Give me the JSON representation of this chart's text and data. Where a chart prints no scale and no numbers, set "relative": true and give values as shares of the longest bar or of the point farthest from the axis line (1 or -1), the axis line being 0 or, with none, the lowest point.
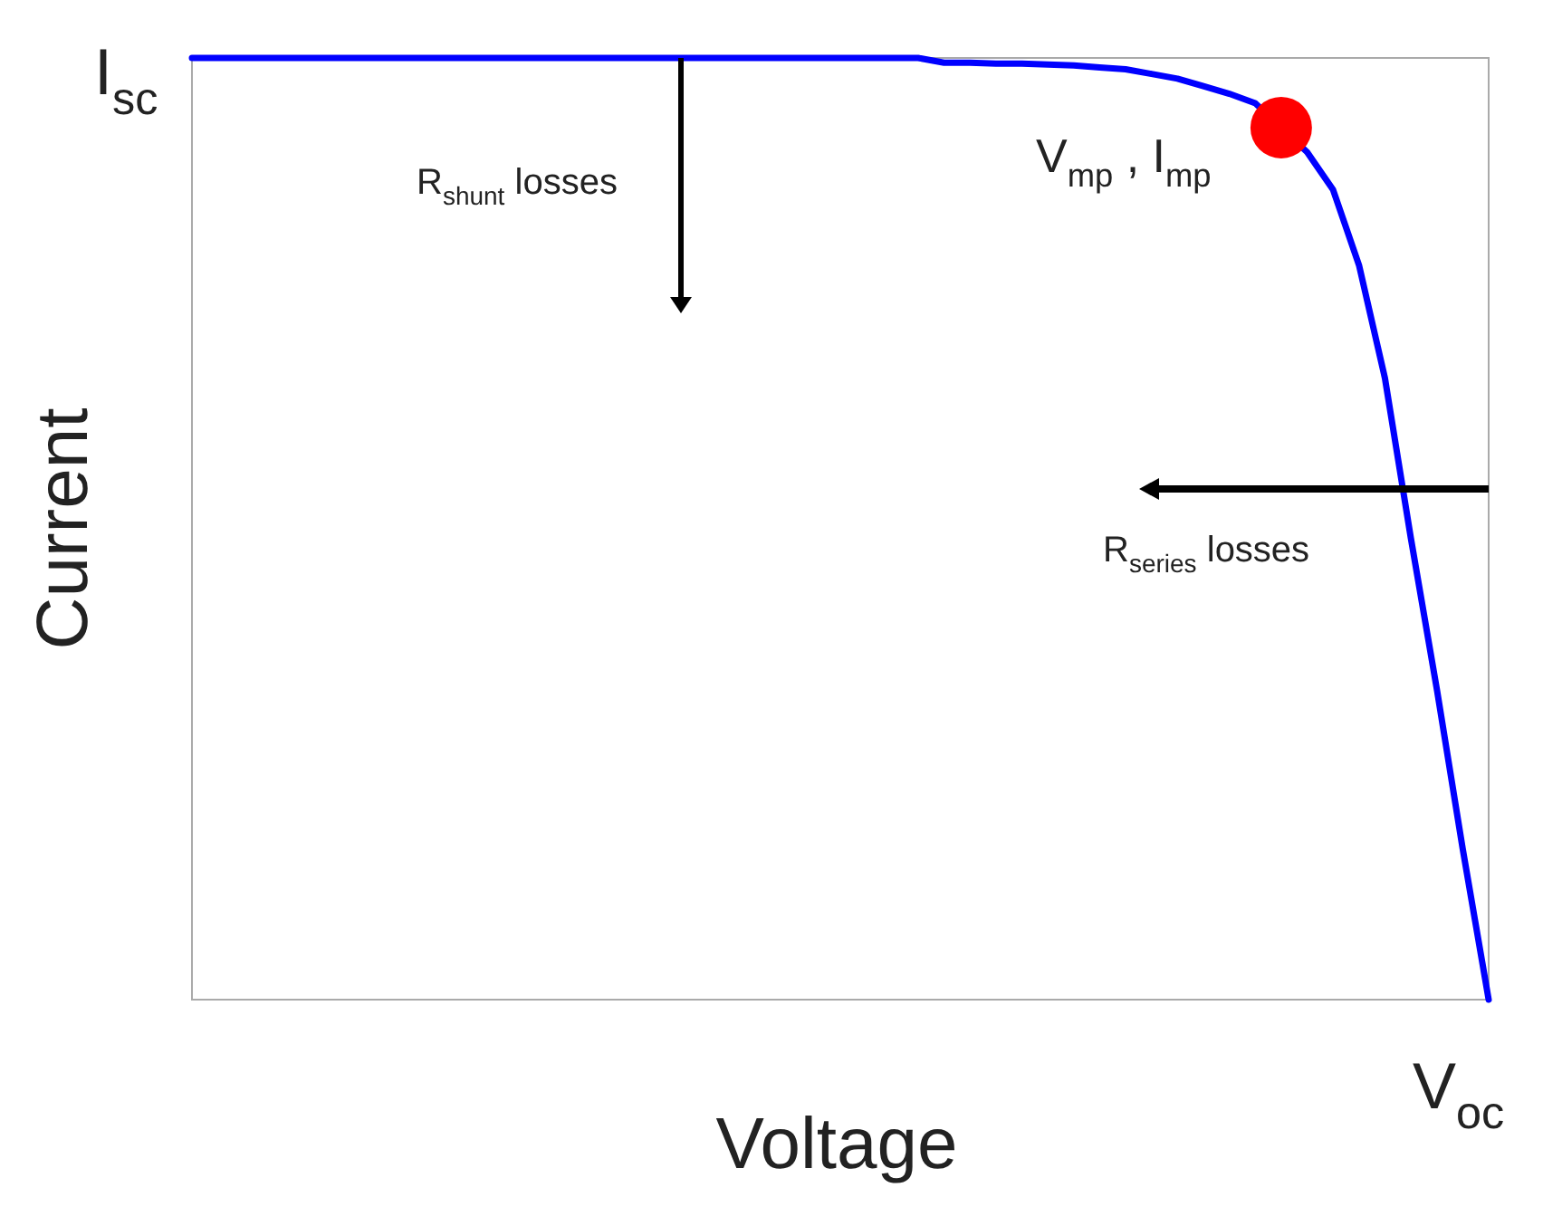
{
  "chart_data": {
    "type": "line",
    "relative": true,
    "xlabel": "Voltage",
    "ylabel": "Current",
    "categories": [
      null,
      null,
      null,
      null,
      null,
      null,
      null,
      null,
      null,
      null,
      null,
      null,
      null,
      null,
      null,
      null,
      null,
      null,
      null,
      null,
      null,
      null,
      null,
      null,
      null,
      null,
      null,
      null,
      null,
      null,
      null,
      null,
      null,
      null,
      null,
      null,
      null,
      null,
      null,
      null,
      null,
      null,
      null,
      null,
      null,
      null,
      null,
      null,
      null,
      null,
      null
    ],
    "series": [
      {
        "color": "#0000ff",
        "values": [
          1,
          1,
          1,
          1,
          1,
          1,
          1,
          1,
          1,
          1,
          1,
          1,
          1,
          1,
          1,
          1,
          1,
          1,
          1,
          1,
          1,
          1,
          1,
          1,
          1,
          1,
          1,
          1,
          1,
          0.995,
          0.995,
          0.994,
          0.994,
          0.993,
          0.992,
          0.99,
          0.988,
          0.983,
          0.978,
          0.97,
          0.962,
          0.952,
          null,
          0.9,
          0.86,
          0.78,
          0.66,
          0.49,
          0.33,
          0.16,
          0
        ]
      }
    ],
    "annotations": [
      "I$_{sc}$",
      "V$_{oc}$",
      "V$_{mp}$ , I$_{mp}$",
      "R$_{shunt}$ losses",
      "R$_{series}$ losses"
    ],
    "marker": "none",
    "line_style": "solid"
  }
}
